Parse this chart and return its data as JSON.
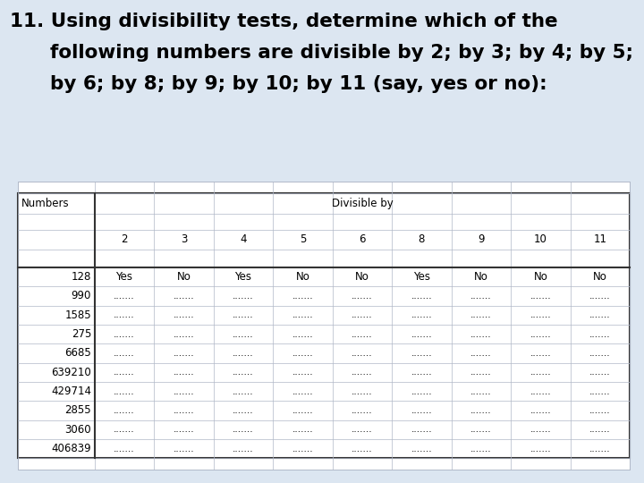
{
  "title_line1": "11. Using divisibility tests, determine which of the",
  "title_line2": "      following numbers are divisible by 2; by 3; by 4; by 5;",
  "title_line3": "      by 6; by 8; by 9; by 10; by 11 (say, yes or no):",
  "bg_color": "#dce6f1",
  "table_bg": "#ffffff",
  "header1": "Numbers",
  "header2": "Divisible by",
  "col_headers": [
    "2",
    "3",
    "4",
    "5",
    "6",
    "8",
    "9",
    "10",
    "11"
  ],
  "numbers": [
    "128",
    "990",
    "1585",
    "275",
    "6685",
    "639210",
    "429714",
    "2855",
    "3060",
    "406839"
  ],
  "row1_answers": [
    "Yes",
    "No",
    "Yes",
    "No",
    "No",
    "Yes",
    "No",
    "No",
    "No"
  ],
  "dots": ".......",
  "title_fontsize": 15.5,
  "table_fontsize": 8.5
}
